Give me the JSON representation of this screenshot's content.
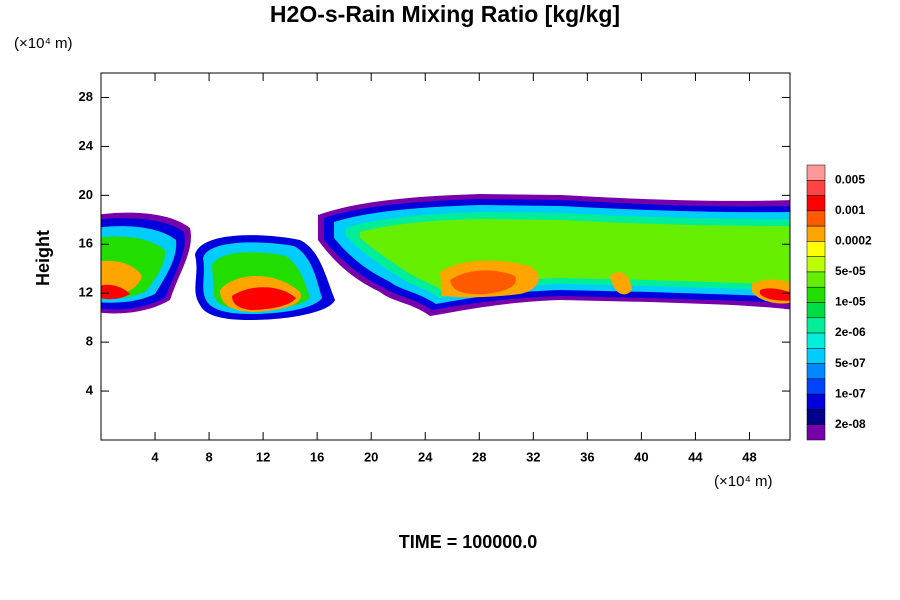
{
  "chart_data": {
    "type": "contour",
    "title": "H2O-s-Rain Mixing Ratio [kg/kg]",
    "y_unit": "(×10⁴ m)",
    "x_unit": "(×10⁴ m)",
    "ylabel": "Height",
    "footer": "TIME = 100000.0",
    "xlim": [
      0,
      51
    ],
    "xticks": [
      4,
      8,
      12,
      16,
      20,
      24,
      28,
      32,
      36,
      40,
      44,
      48
    ],
    "ylim": [
      0,
      30
    ],
    "yticks": [
      4,
      8,
      12,
      16,
      20,
      24,
      28
    ],
    "colorbar": {
      "colors": [
        "#ff9999",
        "#ff4444",
        "#ff0000",
        "#ff5a00",
        "#ffa500",
        "#ffff00",
        "#bbff00",
        "#66ee00",
        "#22dd00",
        "#00dd44",
        "#00ee99",
        "#00eedd",
        "#00ccff",
        "#0088ff",
        "#0044ff",
        "#0000dd",
        "#000088",
        "#7700aa"
      ],
      "labels": [
        "0.005",
        "0.001",
        "0.0002",
        "5e-05",
        "1e-05",
        "2e-06",
        "5e-07",
        "1e-07",
        "2e-08"
      ]
    }
  }
}
